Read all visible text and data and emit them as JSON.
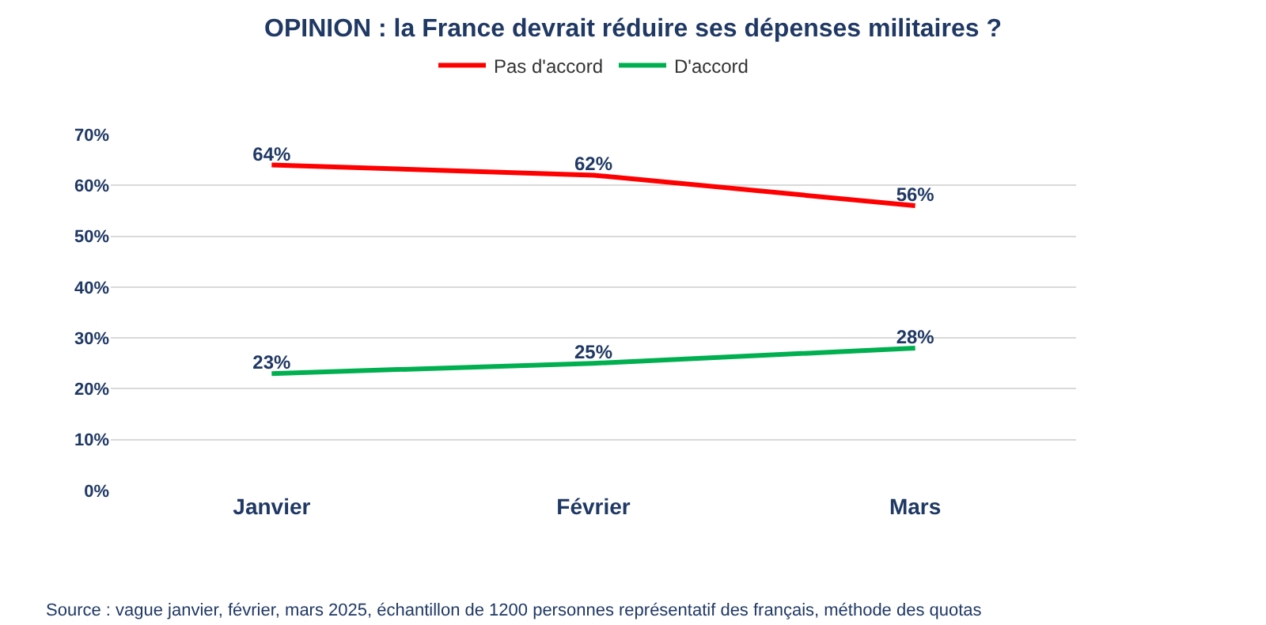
{
  "chart_data": {
    "type": "line",
    "title": "OPINION : la France devrait réduire ses dépenses militaires ?",
    "categories": [
      "Janvier",
      "Février",
      "Mars"
    ],
    "series": [
      {
        "name": "Pas d'accord",
        "color": "#ff0000",
        "values": [
          64,
          62,
          56
        ],
        "value_labels": [
          "64%",
          "62%",
          "56%"
        ]
      },
      {
        "name": "D'accord",
        "color": "#00b050",
        "values": [
          23,
          25,
          28
        ],
        "value_labels": [
          "23%",
          "25%",
          "28%"
        ]
      }
    ],
    "ylim": [
      0,
      70
    ],
    "yticks": [
      {
        "value": 0,
        "label": "0%"
      },
      {
        "value": 10,
        "label": "10%"
      },
      {
        "value": 20,
        "label": "20%"
      },
      {
        "value": 30,
        "label": "30%"
      },
      {
        "value": 40,
        "label": "40%"
      },
      {
        "value": 50,
        "label": "50%"
      },
      {
        "value": 60,
        "label": "60%"
      },
      {
        "value": 70,
        "label": "70%"
      }
    ],
    "grid": "y",
    "legend": "top",
    "marker": "none",
    "line_style": "solid",
    "annotations": [
      "Source : vague janvier, février, mars 2025, échantillon de 1200 personnes représentatif des français, méthode des quotas"
    ]
  }
}
